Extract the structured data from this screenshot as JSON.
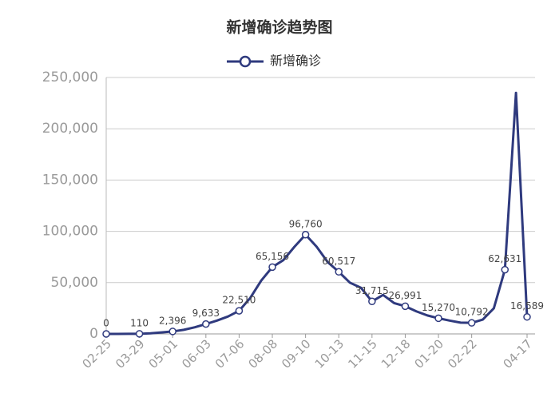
{
  "chart_data": {
    "type": "line",
    "title": "新增确诊趋势图",
    "categories": [
      "02-25",
      null,
      null,
      "03-29",
      null,
      null,
      "05-01",
      null,
      null,
      "06-03",
      null,
      null,
      "07-06",
      null,
      null,
      "08-08",
      null,
      null,
      "09-10",
      null,
      null,
      "10-13",
      null,
      null,
      "11-15",
      null,
      null,
      "12-18",
      null,
      null,
      "01-20",
      null,
      null,
      "02-22",
      null,
      null,
      null,
      null,
      "04-17"
    ],
    "series": [
      {
        "name": "新增确诊",
        "color": "#2f3a7e",
        "values": [
          0,
          20,
          60,
          110,
          600,
          1500,
          2396,
          4000,
          6500,
          9633,
          13000,
          17000,
          22510,
          35000,
          52000,
          65156,
          72000,
          85000,
          96760,
          85000,
          70000,
          60517,
          50000,
          45000,
          31715,
          38000,
          30000,
          26991,
          22000,
          18000,
          15270,
          13000,
          11000,
          10792,
          14000,
          25000,
          62631,
          235000,
          16589
        ],
        "value_labels": [
          "0",
          null,
          null,
          "110",
          null,
          null,
          "2,396",
          null,
          null,
          "9,633",
          null,
          null,
          "22,510",
          null,
          null,
          "65,156",
          null,
          null,
          "96,760",
          null,
          null,
          "60,517",
          null,
          null,
          "31,715",
          null,
          null,
          "26,991",
          null,
          null,
          "15,270",
          null,
          null,
          "10,792",
          null,
          null,
          "62,631",
          null,
          "16,589"
        ]
      }
    ],
    "ylim": [
      0,
      250000
    ],
    "yticks": [
      0,
      {
        "value": 50000,
        "label": "50,000"
      },
      {
        "value": 100000,
        "label": "100,000"
      },
      {
        "value": 150000,
        "label": "150,000"
      },
      {
        "value": 200000,
        "label": "200,000"
      },
      {
        "value": 250000,
        "label": "250,000"
      }
    ],
    "grid": true
  }
}
